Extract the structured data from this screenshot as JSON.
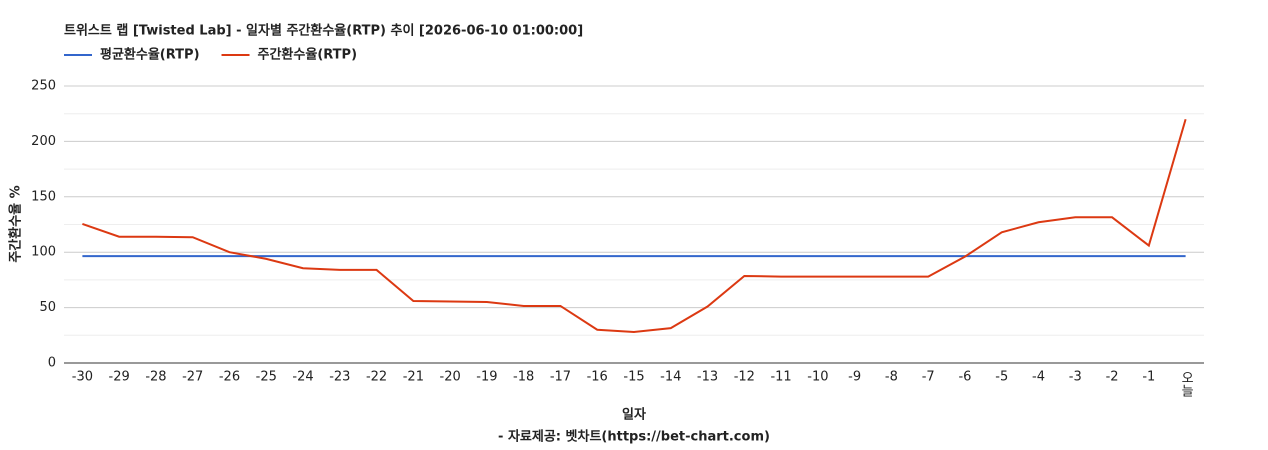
{
  "chart_data": {
    "type": "line",
    "title": "트위스트 랩 [Twisted Lab] - 일자별 주간환수율(RTP) 추이 [2026-06-10 01:00:00]",
    "x_label": "일자",
    "y_label": "주간환수율 %",
    "source": "- 자료제공: 벳차트(https://bet-chart.com)",
    "categories": [
      "-30",
      "-29",
      "-28",
      "-27",
      "-26",
      "-25",
      "-24",
      "-23",
      "-22",
      "-21",
      "-20",
      "-19",
      "-18",
      "-17",
      "-16",
      "-15",
      "-14",
      "-13",
      "-12",
      "-11",
      "-10",
      "-9",
      "-8",
      "-7",
      "-6",
      "-5",
      "-4",
      "-3",
      "-2",
      "-1",
      "오늘"
    ],
    "series": [
      {
        "name": "평균환수율(RTP)",
        "color": "#3366cc",
        "values": [
          96.5,
          96.5,
          96.5,
          96.5,
          96.5,
          96.5,
          96.5,
          96.5,
          96.5,
          96.5,
          96.5,
          96.5,
          96.5,
          96.5,
          96.5,
          96.5,
          96.5,
          96.5,
          96.5,
          96.5,
          96.5,
          96.5,
          96.5,
          96.5,
          96.5,
          96.5,
          96.5,
          96.5,
          96.5,
          96.5,
          96.5
        ]
      },
      {
        "name": "주간환수율(RTP)",
        "color": "#dc3912",
        "values": [
          125.5,
          114,
          114,
          113.5,
          100,
          94,
          85.5,
          84,
          84,
          56,
          55.5,
          55,
          51.5,
          51.5,
          30,
          28,
          31.5,
          51,
          78.5,
          78,
          78,
          78,
          78,
          78,
          96,
          118,
          127,
          131.5,
          131.5,
          106,
          220
        ]
      }
    ],
    "ylim": [
      0,
      250
    ],
    "yticks": [
      0,
      50,
      100,
      150,
      200,
      250
    ],
    "grid": true
  }
}
